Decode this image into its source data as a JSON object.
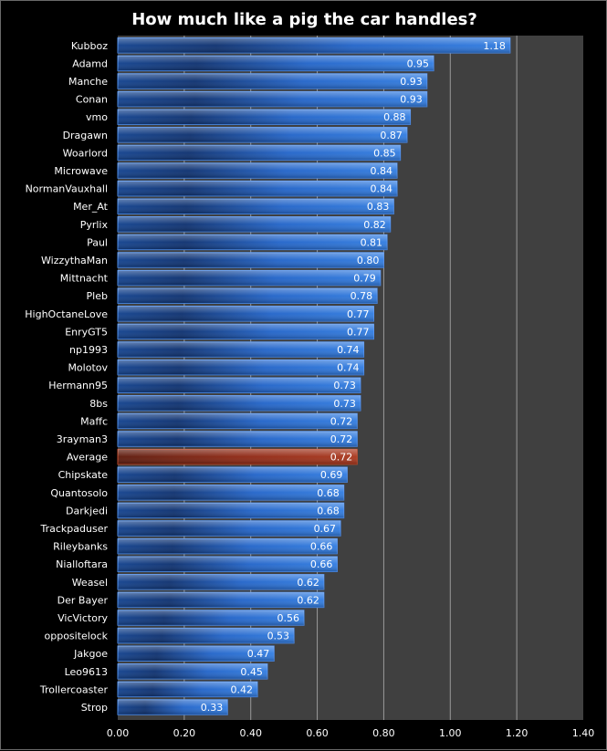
{
  "chart_data": {
    "type": "bar",
    "orientation": "horizontal",
    "title": "How much like a pig the car handles?",
    "xlabel": "",
    "ylabel": "",
    "xlim": [
      0,
      1.4
    ],
    "x_ticks": [
      "0.00",
      "0.20",
      "0.40",
      "0.60",
      "0.80",
      "1.00",
      "1.20",
      "1.40"
    ],
    "grid": "vertical",
    "legend": "none",
    "categories": [
      "Kubboz",
      "Adamd",
      "Manche",
      "Conan",
      "vmo",
      "Dragawn",
      "Woarlord",
      "Microwave",
      "NormanVauxhall",
      "Mer_At",
      "Pyrlix",
      "Paul",
      "WizzythaMan",
      "Mittnacht",
      "Pleb",
      "HighOctaneLove",
      "EnryGT5",
      "np1993",
      "Molotov",
      "Hermann95",
      "8bs",
      "Maffc",
      "3rayman3",
      "Average",
      "Chipskate",
      "Quantosolo",
      "Darkjedi",
      "Trackpaduser",
      "Rileybanks",
      "Nialloftara",
      "Weasel",
      "Der Bayer",
      "VicVictory",
      "oppositelock",
      "Jakgoe",
      "Leo9613",
      "Trollercoaster",
      "Strop"
    ],
    "values": [
      1.18,
      0.95,
      0.93,
      0.93,
      0.88,
      0.87,
      0.85,
      0.84,
      0.84,
      0.83,
      0.82,
      0.81,
      0.8,
      0.79,
      0.78,
      0.77,
      0.77,
      0.74,
      0.74,
      0.73,
      0.73,
      0.72,
      0.72,
      0.72,
      0.69,
      0.68,
      0.68,
      0.67,
      0.66,
      0.66,
      0.62,
      0.62,
      0.56,
      0.53,
      0.47,
      0.45,
      0.42,
      0.33
    ],
    "labels": [
      "1.18",
      "0.95",
      "0.93",
      "0.93",
      "0.88",
      "0.87",
      "0.85",
      "0.84",
      "0.84",
      "0.83",
      "0.82",
      "0.81",
      "0.80",
      "0.79",
      "0.78",
      "0.77",
      "0.77",
      "0.74",
      "0.74",
      "0.73",
      "0.73",
      "0.72",
      "0.72",
      "0.72",
      "0.69",
      "0.68",
      "0.68",
      "0.67",
      "0.66",
      "0.66",
      "0.62",
      "0.62",
      "0.56",
      "0.53",
      "0.47",
      "0.45",
      "0.42",
      "0.33"
    ],
    "highlight_category": "Average",
    "colors": {
      "bar": "#1f62c8",
      "bar_highlight": "#8b2410",
      "plot_background": "#404040",
      "gridline": "#9a9a9a",
      "text": "#ffffff"
    }
  }
}
